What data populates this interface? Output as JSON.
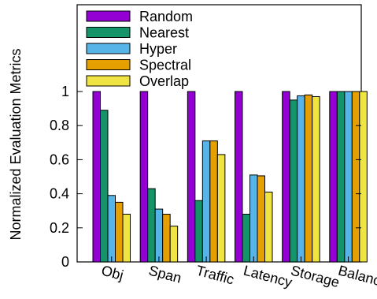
{
  "chart_data": {
    "type": "bar",
    "title": "",
    "xlabel": "",
    "ylabel": "Normalized Evaluation Metrics",
    "ylim": [
      0,
      1.0
    ],
    "yticks": [
      0,
      0.2,
      0.4,
      0.6,
      0.8,
      1
    ],
    "ytick_labels": [
      "0",
      "0.2",
      "0.4",
      "0.6",
      "0.8",
      "1"
    ],
    "grid": false,
    "legend_position": "top-left",
    "categories": [
      "Obj",
      "Span",
      "Traffic",
      "Latency",
      "Storage",
      "Balance"
    ],
    "series": [
      {
        "name": "Random",
        "color": "#9400d3",
        "values": [
          1.0,
          1.0,
          1.0,
          1.0,
          1.0,
          1.0
        ]
      },
      {
        "name": "Nearest",
        "color": "#149468",
        "values": [
          0.89,
          0.43,
          0.36,
          0.28,
          0.95,
          1.0
        ]
      },
      {
        "name": "Hyper",
        "color": "#56b4e9",
        "values": [
          0.39,
          0.31,
          0.71,
          0.51,
          0.975,
          1.0
        ]
      },
      {
        "name": "Spectral",
        "color": "#e69f00",
        "values": [
          0.35,
          0.28,
          0.71,
          0.505,
          0.98,
          1.0
        ]
      },
      {
        "name": "Overlap",
        "color": "#f0e442",
        "values": [
          0.28,
          0.21,
          0.63,
          0.41,
          0.97,
          1.0
        ]
      }
    ]
  }
}
